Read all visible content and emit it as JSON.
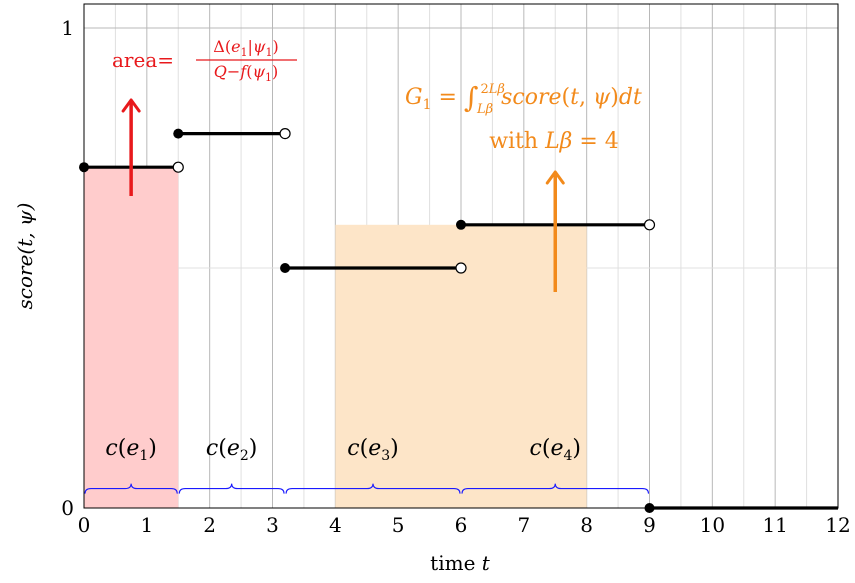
{
  "chart_data": {
    "type": "step",
    "xlabel": "time t",
    "ylabel": "score(t, ψ)",
    "xlim": [
      0,
      12
    ],
    "ylim": [
      0,
      1.05
    ],
    "x_ticks": [
      0,
      1,
      2,
      3,
      4,
      5,
      6,
      7,
      8,
      9,
      10,
      11,
      12
    ],
    "y_ticks": [
      0,
      1
    ],
    "y_tick_labels": [
      "0",
      "1"
    ],
    "minor_x_grid_step": 0.5,
    "grid": true,
    "segments": [
      {
        "x0": 0,
        "x1": 1.5,
        "y": 0.71,
        "closed_start": true,
        "open_end": true
      },
      {
        "x0": 1.5,
        "x1": 3.2,
        "y": 0.78,
        "closed_start": true,
        "open_end": true
      },
      {
        "x0": 3.2,
        "x1": 6.0,
        "y": 0.5,
        "closed_start": true,
        "open_end": true
      },
      {
        "x0": 6.0,
        "x1": 9.0,
        "y": 0.59,
        "closed_start": true,
        "open_end": true
      },
      {
        "x0": 9.0,
        "x1": 12,
        "y": 0.0,
        "closed_start": true,
        "open_end": false
      }
    ],
    "shaded_regions": [
      {
        "x0": 0,
        "x1": 1.5,
        "y": 0.71,
        "color": "#ffcccc"
      },
      {
        "x0": 4,
        "x1": 8,
        "y": 0.59,
        "color": "#fde5c8"
      }
    ],
    "arrows": [
      {
        "x": 0.75,
        "y0": 0.65,
        "y1": 0.85,
        "color": "#e8191c"
      },
      {
        "x": 7.5,
        "y0": 0.45,
        "y1": 0.7,
        "color": "#f28a1b"
      }
    ],
    "braces": [
      {
        "x0": 0,
        "x1": 1.5,
        "label": "c(e1)",
        "sym": "c(e",
        "sub": "1",
        "label_x": 0.75
      },
      {
        "x0": 1.5,
        "x1": 3.2,
        "label": "c(e2)",
        "sym": "c(e",
        "sub": "2",
        "label_x": 2.35
      },
      {
        "x0": 3.2,
        "x1": 6.0,
        "label": "c(e3)",
        "sym": "c(e",
        "sub": "3",
        "label_x": 4.6
      },
      {
        "x0": 6.0,
        "x1": 9.0,
        "label": "c(e4)",
        "sym": "c(e",
        "sub": "4",
        "label_x": 7.5
      }
    ],
    "brace_y": 0.03,
    "brace_label_y": 0.11,
    "annotations": {
      "area": {
        "prefix": "area=",
        "numerator": "Δ(e1|ψ1)",
        "denominator": "Q−f(ψ1)",
        "color": "#e8191c"
      },
      "G1": {
        "line1": "G1 = ∫ score(t, ψ)dt",
        "lower": "Lβ",
        "upper": "2Lβ",
        "line2": "with Lβ = 4",
        "color": "#f28a1b"
      }
    }
  }
}
